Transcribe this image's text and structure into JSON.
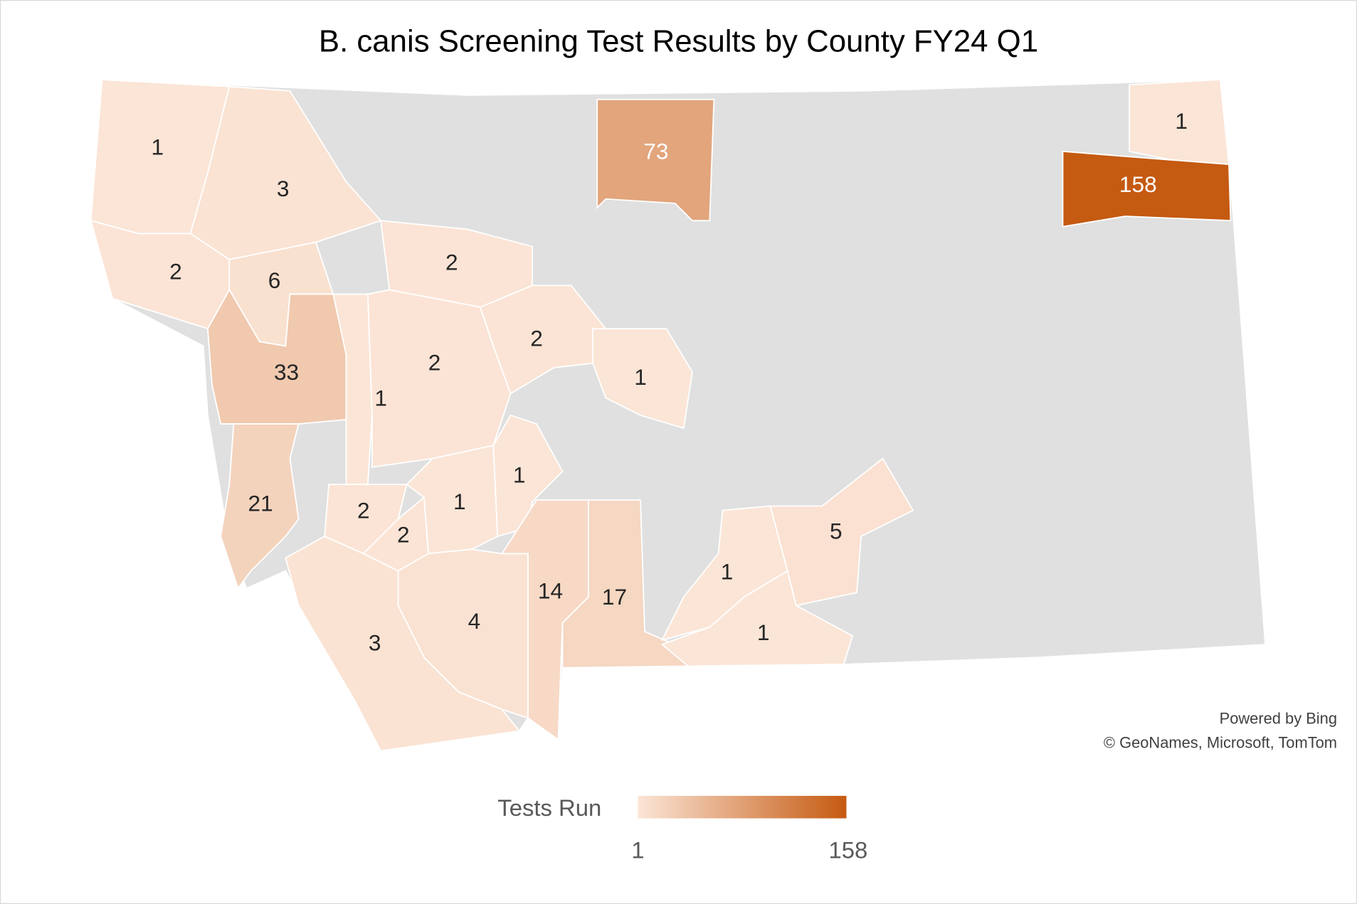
{
  "map": {
    "title": "B. canis Screening Test Results by County FY24 Q1",
    "regions": {
      "values": [
        1,
        3,
        2,
        6,
        33,
        21,
        1,
        2,
        2,
        2,
        1,
        73,
        1,
        158,
        2,
        2,
        1,
        1,
        14,
        17,
        4,
        3,
        1,
        1,
        5
      ]
    },
    "legend": {
      "title": "Tests Run",
      "min": 1,
      "max": 158,
      "colors": [
        "#fbe5d6",
        "#c55a11"
      ]
    },
    "attribution": [
      "Powered by Bing",
      "© GeoNames, Microsoft, TomTom"
    ]
  }
}
